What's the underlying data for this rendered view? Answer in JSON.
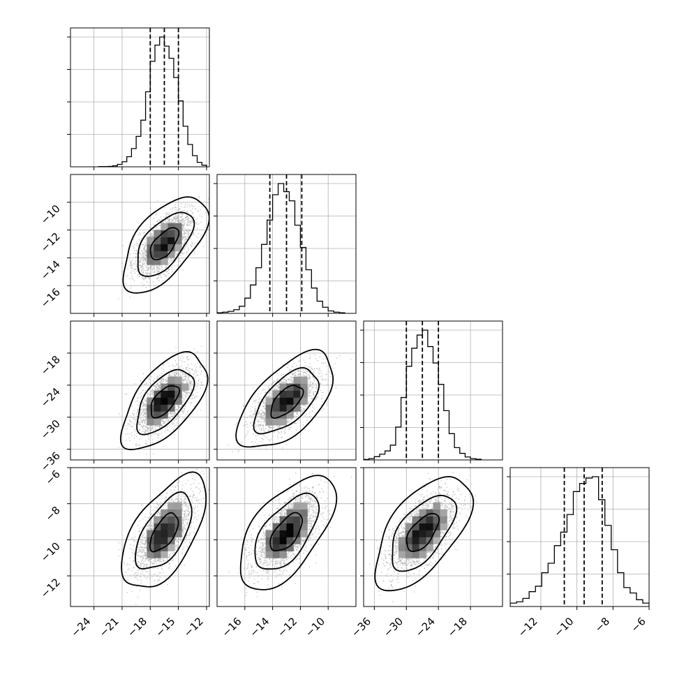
{
  "chart_data": {
    "type": "corner",
    "title": "",
    "parameters": 4,
    "colors": {
      "points": "#aaaaaa",
      "marks": "#000000",
      "grid": "#b0b0b0"
    },
    "grid": true,
    "density_levels": [
      0.393,
      0.865,
      0.989
    ],
    "axes": [
      {
        "index": 0,
        "range": [
          -26.5,
          -11.7
        ],
        "ticks": [
          -24,
          -21,
          -18,
          -15,
          -12
        ],
        "tick_labels": [
          "−24",
          "−21",
          "−18",
          "−15",
          "−12"
        ]
      },
      {
        "index": 1,
        "range": [
          -18.0,
          -8.0
        ],
        "ticks": [
          -16,
          -14,
          -12,
          -10
        ],
        "tick_labels": [
          "−16",
          "−14",
          "−12",
          "−10"
        ]
      },
      {
        "index": 2,
        "range": [
          -38.0,
          -12.0
        ],
        "ticks": [
          -36,
          -30,
          -24,
          -18
        ],
        "tick_labels": [
          "−36",
          "−30",
          "−24",
          "−18"
        ]
      },
      {
        "index": 3,
        "range": [
          -13.7,
          -6.0
        ],
        "ticks": [
          -12,
          -10,
          -8,
          -6
        ],
        "tick_labels": [
          "−12",
          "−10",
          "−8",
          "−6"
        ]
      }
    ],
    "marginals": [
      {
        "param": 0,
        "quantiles": [
          -18.0,
          -16.5,
          -15.0
        ],
        "bin_edges": [
          -23.5,
          -23.0,
          -22.5,
          -22.0,
          -21.5,
          -21.0,
          -20.5,
          -20.0,
          -19.5,
          -19.0,
          -18.5,
          -18.0,
          -17.5,
          -17.0,
          -16.5,
          -16.0,
          -15.5,
          -15.0,
          -14.5,
          -14.0,
          -13.5,
          -13.0,
          -12.5,
          -12.0
        ],
        "counts": [
          1,
          1,
          2,
          5,
          12,
          25,
          50,
          90,
          150,
          230,
          370,
          520,
          600,
          640,
          595,
          535,
          440,
          325,
          200,
          110,
          55,
          22,
          8
        ]
      },
      {
        "param": 1,
        "quantiles": [
          -14.2,
          -13.0,
          -11.9
        ],
        "bin_edges": [
          -18.0,
          -17.6,
          -17.2,
          -16.8,
          -16.4,
          -16.0,
          -15.6,
          -15.2,
          -14.8,
          -14.4,
          -14.0,
          -13.6,
          -13.2,
          -12.8,
          -12.4,
          -12.0,
          -11.6,
          -11.2,
          -10.8,
          -10.4,
          -10.0,
          -9.6,
          -9.2,
          -8.8
        ],
        "counts": [
          3,
          6,
          10,
          18,
          35,
          75,
          140,
          225,
          340,
          460,
          585,
          640,
          600,
          555,
          435,
          325,
          215,
          125,
          60,
          30,
          12,
          6,
          3
        ]
      },
      {
        "param": 2,
        "quantiles": [
          -30.0,
          -27.0,
          -24.0
        ],
        "bin_edges": [
          -38.0,
          -37.0,
          -36.0,
          -35.0,
          -34.0,
          -33.0,
          -32.0,
          -31.0,
          -30.0,
          -29.0,
          -28.0,
          -27.0,
          -26.0,
          -25.0,
          -24.0,
          -23.0,
          -22.0,
          -21.0,
          -20.0,
          -19.0,
          -18.0,
          -17.0,
          -16.0
        ],
        "counts": [
          3,
          8,
          20,
          35,
          55,
          90,
          200,
          380,
          570,
          680,
          760,
          790,
          690,
          590,
          460,
          300,
          160,
          75,
          40,
          18,
          8,
          4
        ]
      },
      {
        "param": 3,
        "quantiles": [
          -10.7,
          -9.6,
          -8.6
        ],
        "bin_edges": [
          -13.7,
          -13.35,
          -13.0,
          -12.65,
          -12.3,
          -11.95,
          -11.6,
          -11.25,
          -10.9,
          -10.55,
          -10.2,
          -9.85,
          -9.5,
          -9.15,
          -8.8,
          -8.45,
          -8.1,
          -7.75,
          -7.4,
          -7.05,
          -6.7,
          -6.35,
          -6.0
        ],
        "counts": [
          25,
          35,
          60,
          110,
          150,
          250,
          320,
          450,
          550,
          680,
          850,
          910,
          950,
          960,
          790,
          600,
          420,
          250,
          140,
          100,
          50,
          25
        ]
      }
    ],
    "pairs": [
      {
        "x": 0,
        "y": 1,
        "center": [
          -16.5,
          -13.0
        ],
        "sigma": [
          1.5,
          1.15
        ],
        "rho": 0.6
      },
      {
        "x": 0,
        "y": 2,
        "center": [
          -16.5,
          -27.0
        ],
        "sigma": [
          1.5,
          3.0
        ],
        "rho": 0.6
      },
      {
        "x": 1,
        "y": 2,
        "center": [
          -13.0,
          -27.0
        ],
        "sigma": [
          1.15,
          3.0
        ],
        "rho": 0.6
      },
      {
        "x": 0,
        "y": 3,
        "center": [
          -16.5,
          -9.6
        ],
        "sigma": [
          1.5,
          1.05
        ],
        "rho": 0.6
      },
      {
        "x": 1,
        "y": 3,
        "center": [
          -13.0,
          -9.6
        ],
        "sigma": [
          1.15,
          1.05
        ],
        "rho": 0.6
      },
      {
        "x": 2,
        "y": 3,
        "center": [
          -27.0,
          -9.6
        ],
        "sigma": [
          3.0,
          1.05
        ],
        "rho": 0.6
      }
    ]
  }
}
